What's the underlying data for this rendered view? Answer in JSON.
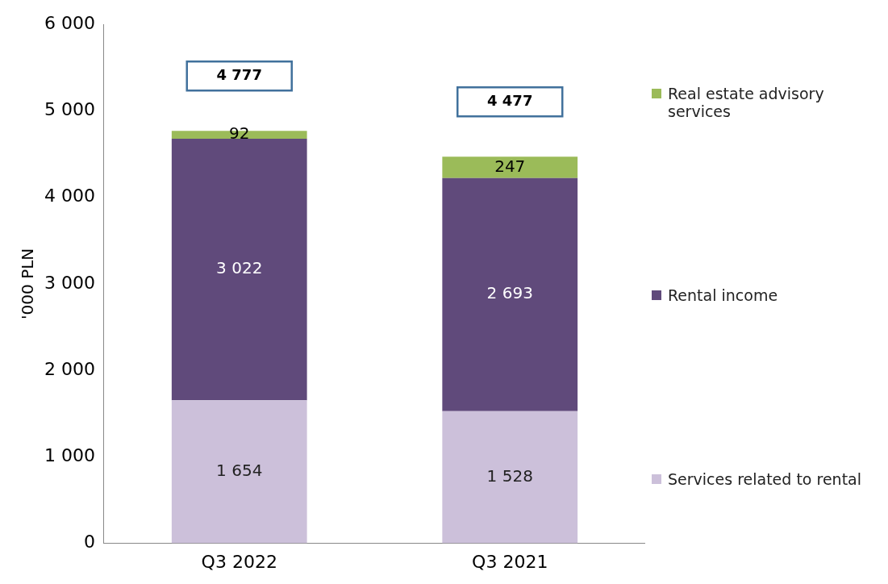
{
  "chart_data": {
    "type": "bar",
    "stacked": true,
    "ylabel": "'000 PLN",
    "categories": [
      "Q3 2022",
      "Q3 2021"
    ],
    "series": [
      {
        "name": "Services related to rental",
        "color": "#ccc0da",
        "values": [
          1654,
          1528
        ],
        "value_labels": [
          "1 654",
          "1 528"
        ]
      },
      {
        "name": "Rental income",
        "color": "#604a7b",
        "values": [
          3022,
          2693
        ],
        "value_labels": [
          "3 022",
          "2 693"
        ]
      },
      {
        "name": "Real estate advisory services",
        "color": "#9bbb59",
        "values": [
          92,
          247
        ],
        "value_labels": [
          "92",
          "247"
        ]
      }
    ],
    "annotations": [
      "4 777",
      "4 477"
    ],
    "ylim": [
      0,
      6000
    ],
    "yticks": [
      {
        "value": 0,
        "label": "0"
      },
      {
        "value": 1000,
        "label": "1 000"
      },
      {
        "value": 2000,
        "label": "2 000"
      },
      {
        "value": 3000,
        "label": "3 000"
      },
      {
        "value": 4000,
        "label": "4 000"
      },
      {
        "value": 5000,
        "label": "5 000"
      },
      {
        "value": 6000,
        "label": "6 000"
      }
    ],
    "grid": false,
    "legend": "right"
  }
}
